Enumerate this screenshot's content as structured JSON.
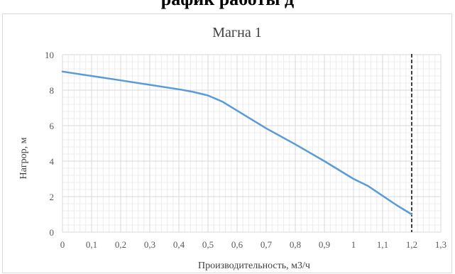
{
  "heading": "рафик работы д",
  "chart_data": {
    "type": "line",
    "title": "Магна 1",
    "xlabel": "Производительность,  м3/ч",
    "ylabel": "Нагрор, м",
    "xlim": [
      0,
      1.3
    ],
    "ylim": [
      0,
      10
    ],
    "x_ticks": [
      "0",
      "0,1",
      "0,2",
      "0,3",
      "0,4",
      "0,5",
      "0,6",
      "0,7",
      "0,8",
      "0,9",
      "1",
      "1,1",
      "1,2",
      "1,3"
    ],
    "y_ticks": [
      "0",
      "2",
      "4",
      "6",
      "8",
      "10"
    ],
    "grid": true,
    "series": [
      {
        "color": "#5b9bd5",
        "x": [
          0,
          0.1,
          0.2,
          0.3,
          0.4,
          0.45,
          0.5,
          0.55,
          0.6,
          0.65,
          0.7,
          0.8,
          0.9,
          1.0,
          1.05,
          1.1,
          1.15,
          1.2
        ],
        "y": [
          9.05,
          8.8,
          8.55,
          8.3,
          8.05,
          7.9,
          7.7,
          7.35,
          6.85,
          6.35,
          5.85,
          4.95,
          4.0,
          3.0,
          2.6,
          2.05,
          1.5,
          1.0
        ]
      }
    ],
    "reference_line": {
      "x": 1.2,
      "style": "dashed",
      "color": "#000000"
    }
  }
}
